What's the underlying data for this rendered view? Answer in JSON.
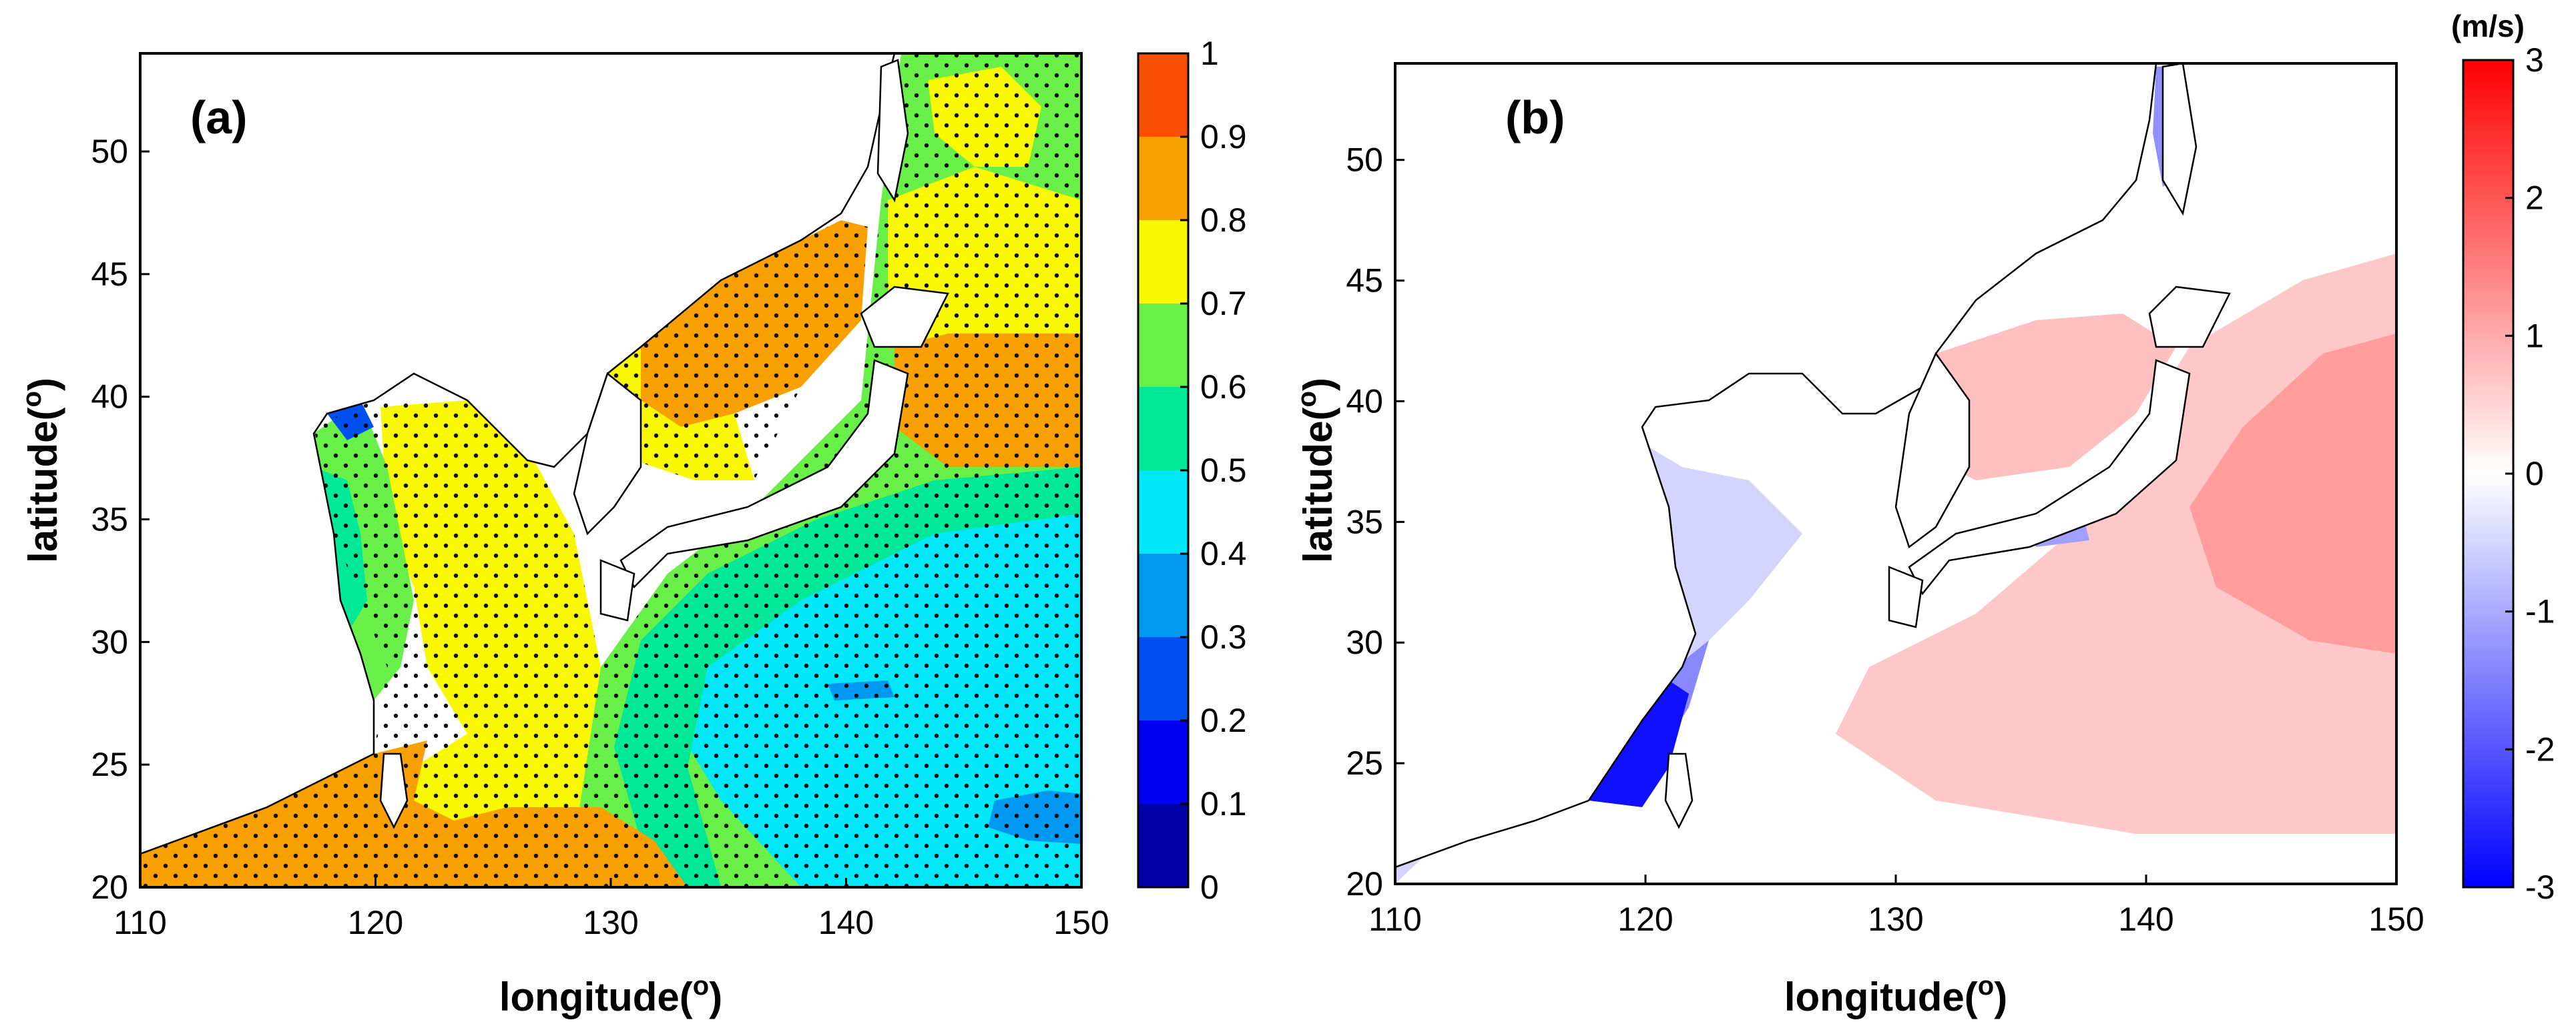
{
  "chart_data": [
    {
      "type": "heatmap",
      "panel_label": "(a)",
      "xlabel": "longitude(o)",
      "ylabel": "latitude(o)",
      "x_range": [
        110,
        150
      ],
      "y_range": [
        20,
        54
      ],
      "x_ticks": [
        "110",
        "120",
        "130",
        "140",
        "150"
      ],
      "y_ticks": [
        "20",
        "25",
        "30",
        "35",
        "40",
        "45",
        "50"
      ],
      "colorbar": {
        "range": [
          0,
          1
        ],
        "ticks": [
          "0",
          "0.1",
          "0.2",
          "0.3",
          "0.4",
          "0.5",
          "0.6",
          "0.7",
          "0.8",
          "0.9",
          "1"
        ],
        "levels": [
          {
            "from": 0.0,
            "to": 0.1,
            "color": "#0000a8"
          },
          {
            "from": 0.1,
            "to": 0.2,
            "color": "#0000f0"
          },
          {
            "from": 0.2,
            "to": 0.3,
            "color": "#0050f0"
          },
          {
            "from": 0.3,
            "to": 0.4,
            "color": "#0098f0"
          },
          {
            "from": 0.4,
            "to": 0.5,
            "color": "#00e8f8"
          },
          {
            "from": 0.5,
            "to": 0.6,
            "color": "#00e898"
          },
          {
            "from": 0.6,
            "to": 0.7,
            "color": "#68f048"
          },
          {
            "from": 0.7,
            "to": 0.8,
            "color": "#f8f800"
          },
          {
            "from": 0.8,
            "to": 0.9,
            "color": "#f8a000"
          },
          {
            "from": 0.9,
            "to": 1.0,
            "color": "#f85000"
          }
        ]
      },
      "stippling": "dots over significant region"
    },
    {
      "type": "heatmap",
      "panel_label": "(b)",
      "xlabel": "longitude(o)",
      "ylabel": "latitude(o)",
      "x_range": [
        110,
        150
      ],
      "y_range": [
        20,
        54
      ],
      "x_ticks": [
        "110",
        "120",
        "130",
        "140",
        "150"
      ],
      "y_ticks": [
        "20",
        "25",
        "30",
        "35",
        "40",
        "45",
        "50"
      ],
      "colorbar": {
        "range": [
          -3,
          3
        ],
        "unit": "(m/s)",
        "ticks": [
          "-3",
          "-2",
          "-1",
          "0",
          "1",
          "2",
          "3"
        ],
        "colors": [
          "#0000ff",
          "#ffffff",
          "#ff0000"
        ]
      }
    }
  ]
}
